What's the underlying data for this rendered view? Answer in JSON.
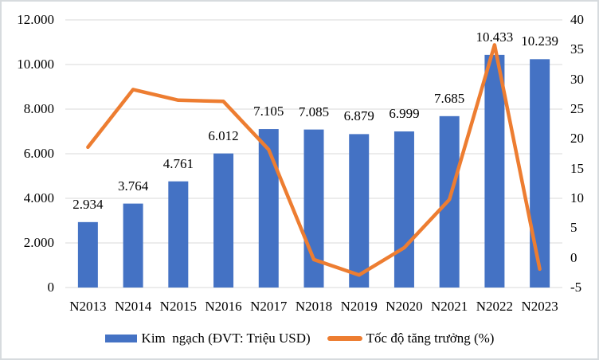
{
  "colors": {
    "bar": "#4472C4",
    "line": "#ED7D31",
    "gridline": "#D9D9D9",
    "text": "#000000",
    "frame_border": "#D7DBDE"
  },
  "chart_data": {
    "type": "bar",
    "subtype": "combo-bar-line-dual-axis",
    "title": "",
    "categories": [
      "N2013",
      "N2014",
      "N2015",
      "N2016",
      "N2017",
      "N2018",
      "N2019",
      "N2020",
      "N2021",
      "N2022",
      "N2023"
    ],
    "series": [
      {
        "name": "Kim  ngạch (ĐVT: Triệu USD)",
        "type": "bar",
        "axis": "left",
        "color": "#4472C4",
        "values": [
          2934,
          3764,
          4761,
          6012,
          7105,
          7085,
          6879,
          6999,
          7685,
          10433,
          10239
        ],
        "value_labels": [
          "2.934",
          "3.764",
          "4.761",
          "6.012",
          "7.105",
          "7.085",
          "6.879",
          "6.999",
          "7.685",
          "10.433",
          "10.239"
        ]
      },
      {
        "name": "Tốc độ tăng trưởng (%)",
        "type": "line",
        "axis": "right",
        "color": "#ED7D31",
        "values": [
          18.6,
          28.3,
          26.5,
          26.3,
          18.2,
          -0.3,
          -2.9,
          1.7,
          9.8,
          35.8,
          -1.9
        ]
      }
    ],
    "left_axis": {
      "min": 0,
      "max": 12000,
      "step": 2000,
      "tick_labels": [
        "0",
        "2.000",
        "4.000",
        "6.000",
        "8.000",
        "10.000",
        "12.000"
      ]
    },
    "right_axis": {
      "min": -5,
      "max": 40,
      "step": 5,
      "tick_labels": [
        "-5",
        "0",
        "5",
        "10",
        "15",
        "20",
        "25",
        "30",
        "35",
        "40"
      ]
    },
    "grid": "horizontal",
    "legend_position": "bottom"
  }
}
